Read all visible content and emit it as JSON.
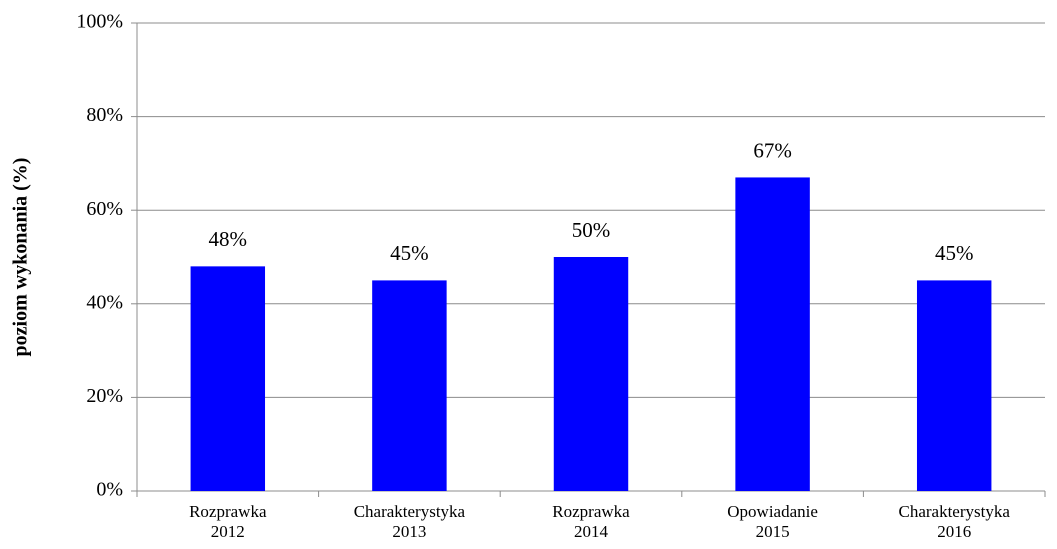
{
  "chart_data": {
    "type": "bar",
    "y_label": "poziom wykonania (%)",
    "categories": [
      [
        "Rozprawka",
        "2012"
      ],
      [
        "Charakterystyka",
        "2013"
      ],
      [
        "Rozprawka",
        "2014"
      ],
      [
        "Opowiadanie",
        "2015"
      ],
      [
        "Charakterystyka",
        "2016"
      ]
    ],
    "values": [
      48,
      45,
      50,
      67,
      45
    ],
    "value_labels": [
      "48%",
      "45%",
      "50%",
      "67%",
      "45%"
    ],
    "color": "#0000ff",
    "ylim": [
      0,
      100
    ],
    "yticks": [
      {
        "value": 0,
        "label": "0%"
      },
      {
        "value": 20,
        "label": "20%"
      },
      {
        "value": 40,
        "label": "40%"
      },
      {
        "value": 60,
        "label": "60%"
      },
      {
        "value": 80,
        "label": "80%"
      },
      {
        "value": 100,
        "label": "100%"
      }
    ],
    "grid": true
  }
}
